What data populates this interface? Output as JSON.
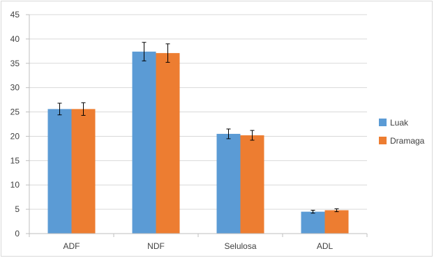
{
  "chart_data": {
    "type": "bar",
    "categories": [
      "ADF",
      "NDF",
      "Selulosa",
      "ADL"
    ],
    "series": [
      {
        "name": "Luak",
        "color": "#5b9bd5",
        "values": [
          25.6,
          37.4,
          20.5,
          4.5
        ],
        "errors": [
          1.2,
          1.9,
          1.0,
          0.3
        ]
      },
      {
        "name": "Dramaga",
        "color": "#ed7d31",
        "values": [
          25.6,
          37.1,
          20.2,
          4.8
        ],
        "errors": [
          1.3,
          1.9,
          1.0,
          0.3
        ]
      }
    ],
    "yticks": [
      "0",
      "5",
      "10",
      "15",
      "20",
      "25",
      "30",
      "35",
      "40",
      "45"
    ],
    "ylim": [
      0,
      45
    ],
    "grid": true,
    "legend_position": "right"
  }
}
